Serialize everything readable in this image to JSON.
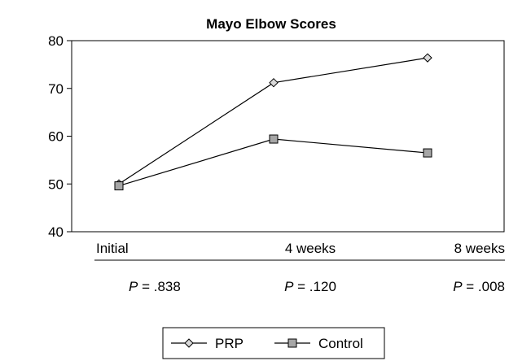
{
  "chart_data": {
    "type": "line",
    "title": "Mayo Elbow Scores",
    "categories": [
      "Initial",
      "4 weeks",
      "8 weeks"
    ],
    "p_values": [
      {
        "italic": "P",
        "rest": " = .838"
      },
      {
        "italic": "P",
        "rest": " = .120"
      },
      {
        "italic": "P",
        "rest": " = .008"
      }
    ],
    "ylim": [
      40,
      80
    ],
    "yticks": [
      40,
      50,
      60,
      70,
      80
    ],
    "grid": false,
    "legend_position": "bottom",
    "series": [
      {
        "name": "PRP",
        "values": [
          50.0,
          71.2,
          76.4
        ],
        "marker": "diamond",
        "color": "#d9d9d9"
      },
      {
        "name": "Control",
        "values": [
          49.6,
          59.4,
          56.5
        ],
        "marker": "square",
        "color": "#a6a6a6"
      }
    ],
    "line_color": "#000000"
  }
}
